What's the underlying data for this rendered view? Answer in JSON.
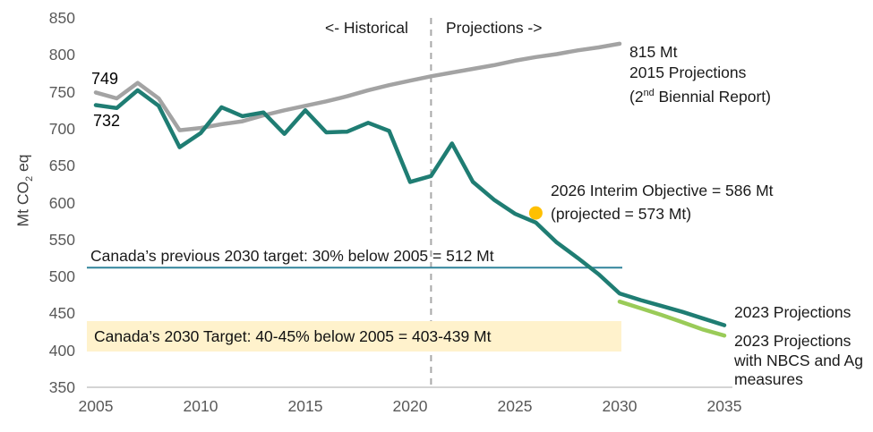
{
  "chart_data": {
    "type": "line",
    "ylabel": "Mt CO2 eq",
    "x_ticks": [
      2005,
      2010,
      2015,
      2020,
      2025,
      2030,
      2035
    ],
    "y_ticks": [
      850,
      800,
      750,
      700,
      650,
      600,
      550,
      500,
      450,
      400,
      350
    ],
    "x_range": [
      2005,
      2035
    ],
    "ylim": [
      350,
      850
    ],
    "grid": false,
    "series": [
      {
        "name": "2015 Projections (2nd Biennial Report)",
        "color": "#A3A3A3",
        "x_start": 2005,
        "values": [
          749,
          741,
          762,
          741,
          698,
          701,
          706,
          710,
          718,
          725,
          731,
          737,
          744,
          752,
          759,
          765,
          771,
          776,
          781,
          786,
          792,
          797,
          801,
          806,
          810,
          815
        ]
      },
      {
        "name": "2023 Projections",
        "color": "#1F7D73",
        "x_start": 2005,
        "values": [
          732,
          728,
          752,
          731,
          675,
          694,
          729,
          717,
          722,
          693,
          725,
          695,
          696,
          708,
          697,
          628,
          636,
          680,
          628,
          604,
          585,
          573,
          546,
          525,
          503,
          477,
          468,
          460,
          452,
          443,
          434
        ]
      },
      {
        "name": "2023 Projections with NBCS and Ag measures",
        "color": "#9ACB58",
        "x_start": 2030,
        "values": [
          466,
          457,
          448,
          438,
          428,
          420
        ]
      }
    ],
    "point_marker": {
      "x": 2026,
      "y": 586,
      "color": "#FFC000",
      "label": "2026 Interim Objective = 586 Mt (projected = 573 Mt)"
    },
    "target_line": {
      "y": 512,
      "x_start": 2005,
      "x_end": 2030,
      "color": "#31849B",
      "label": "Canada’s previous 2030 target: 30% below 2005 = 512 Mt"
    },
    "divider_line": {
      "x": 2021,
      "color": "#A8A8A8",
      "style": "dashed"
    },
    "annotations": {
      "historical": "<- Historical",
      "projections": "Projections ->",
      "gray_start_value": "749",
      "teal_start_value": "732",
      "gray_end_value": "815 Mt",
      "gray_end_name": "2015 Projections",
      "gray_end_note_pre": "(2",
      "gray_end_note_sup": "nd",
      "gray_end_note_post": " Biennial Report)",
      "interim_line1": "2026 Interim Objective = 586 Mt",
      "interim_line2": "(projected = 573 Mt)",
      "prev_target": "Canada’s previous 2030 target: 30% below 2005 = 512 Mt",
      "target_box": "Canada’s 2030 Target: 40-45% below 2005 = 403-439 Mt",
      "teal_end_label": "2023 Projections",
      "green_end_label": "2023 Projections with NBCS and Ag measures",
      "ylabel_pre": "Mt CO",
      "ylabel_sub": "2",
      "ylabel_post": " eq"
    },
    "colors": {
      "axis_line": "#C6C6C6",
      "tick_text": "#595959",
      "annotation_text": "#1a1a1a",
      "target_box_bg": "#FFF2CC"
    }
  }
}
